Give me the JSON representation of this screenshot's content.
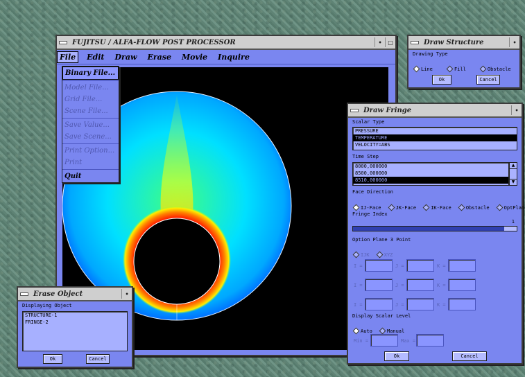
{
  "main_window": {
    "title": "FUJITSU / ALFA-FLOW POST PROCESSOR",
    "menu": [
      "File",
      "Edit",
      "Draw",
      "Erase",
      "Movie",
      "Inquire"
    ],
    "file_menu": [
      {
        "label": "Binary File...",
        "enabled": true
      },
      {
        "label": "Model File...",
        "enabled": false
      },
      {
        "label": "Grid File...",
        "enabled": false
      },
      {
        "label": "Scene File...",
        "enabled": false
      },
      {
        "label": "Save Value...",
        "enabled": false
      },
      {
        "label": "Save Scene...",
        "enabled": false
      },
      {
        "label": "Print Option...",
        "enabled": false
      },
      {
        "label": "Print",
        "enabled": false
      },
      {
        "label": "Quit",
        "enabled": true
      }
    ]
  },
  "draw_structure": {
    "title": "Draw Structure",
    "drawing_type_label": "Drawing Type",
    "options": [
      "Line",
      "Fill",
      "Obstacle"
    ],
    "selected": "Line",
    "ok": "Ok",
    "cancel": "Cancel"
  },
  "draw_fringe": {
    "title": "Draw Fringe",
    "scalar_type_label": "Scalar Type",
    "scalar_types": [
      "PRESSURE",
      "TEMPERATURE",
      "VELOCITY=ABS"
    ],
    "scalar_selected": "TEMPERATURE",
    "time_step_label": "Time Step",
    "time_steps": [
      "8000,000000",
      "8500,000000",
      "8510,000000"
    ],
    "time_step_selected": "8510,000000",
    "face_direction_label": "Face Direction",
    "face_options": [
      "IJ-Face",
      "JK-Face",
      "IK-Face",
      "Obstacle",
      "OptPlane"
    ],
    "face_selected": "IJ-Face",
    "fringe_index_label": "Fringe Index",
    "fringe_index_value": "1",
    "fringe_index_fraction": 1.0,
    "option_plane_label": "Option Plane 3 Point",
    "option_plane_options": [
      "IJK",
      "XYZ"
    ],
    "coord_labels": [
      "I =",
      "J =",
      "K ="
    ],
    "display_scalar_label": "Display Scalar Level",
    "scalar_level_options": [
      "Auto",
      "Manual"
    ],
    "scalar_level_selected": "Auto",
    "min_label": "Min =",
    "max_label": "Max =",
    "ok": "Ok",
    "cancel": "Cancel"
  },
  "erase_object": {
    "title": "Erase Object",
    "displaying_label": "Displaying Object",
    "objects": [
      "STRUCTURE-1",
      "FRINGE-2"
    ],
    "ok": "Ok",
    "cancel": "Cancel"
  },
  "colors": {
    "panel": "#7a86f0",
    "titlebar": "#cfcfcf",
    "desktop": "#628676"
  }
}
